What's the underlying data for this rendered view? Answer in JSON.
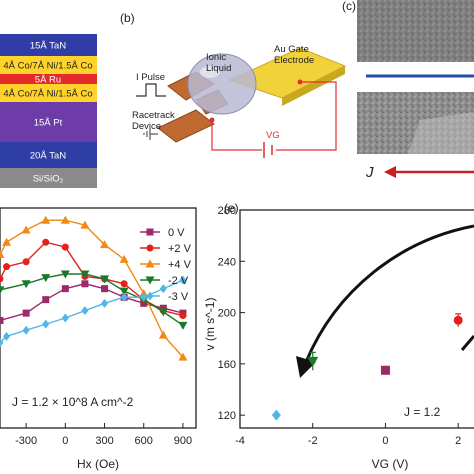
{
  "panel_labels": {
    "b": "(b)",
    "c": "(c)",
    "e": "(e)"
  },
  "stack": {
    "layers": [
      {
        "label": "15Å TaN",
        "color": "#2f3ea6",
        "text_color": "#ffffff"
      },
      {
        "label": "4Å Co/7Å Ni/1.5Å Co",
        "color": "#ffd32a",
        "text_color": "#222222"
      },
      {
        "label": "5Å Ru",
        "color": "#e52a2a",
        "text_color": "#ffffff"
      },
      {
        "label": "4Å Co/7Å Ni/1.5Å Co",
        "color": "#ffd32a",
        "text_color": "#222222"
      },
      {
        "label": "15Å Pt",
        "color": "#6d3ca8",
        "text_color": "#ffffff"
      },
      {
        "label": "20Å TaN",
        "color": "#2f3ea6",
        "text_color": "#ffffff"
      },
      {
        "label": "Si/SiO₂",
        "color": "#8a8a8a",
        "text_color": "#ffffff"
      }
    ]
  },
  "device": {
    "pulse_label": "I Pulse",
    "liquid_label": "Ionic\nLiquid",
    "device_label": "Racetrack\nDevice",
    "gate_label": "Au Gate\nElectrode",
    "voltage_label": "VG"
  },
  "kerr": {
    "current_label": "J"
  },
  "colors": {
    "accent_blue": "#1f4fa8",
    "arrow_red": "#c62020"
  },
  "chart_data": [
    {
      "type": "line",
      "title": "",
      "xlabel": "Hx (Oe)",
      "ylabel": "",
      "xlim": [
        -500,
        1000
      ],
      "ylim": [
        100,
        280
      ],
      "x_ticks": [
        -300,
        0,
        300,
        600,
        900
      ],
      "annotation": "J = 1.2 × 10^8 A cm^-2",
      "legend_position": "top-right",
      "series": [
        {
          "name": "0 V",
          "color": "#9b2a6a",
          "marker": "square",
          "x": [
            -500,
            -300,
            -150,
            0,
            150,
            300,
            450,
            600,
            750,
            900
          ],
          "y": [
            188,
            194,
            205,
            214,
            218,
            214,
            207,
            202,
            198,
            194
          ]
        },
        {
          "name": "+2 V",
          "color": "#e2211c",
          "marker": "circle",
          "x": [
            -500,
            -450,
            -300,
            -150,
            0,
            150,
            300,
            450,
            600,
            750,
            900
          ],
          "y": [
            222,
            232,
            236,
            252,
            248,
            224,
            222,
            218,
            205,
            196,
            192
          ]
        },
        {
          "name": "+4 V",
          "color": "#f08a14",
          "marker": "triangle-up",
          "x": [
            -500,
            -450,
            -300,
            -150,
            0,
            150,
            300,
            450,
            600,
            750,
            900
          ],
          "y": [
            242,
            252,
            262,
            270,
            270,
            266,
            250,
            238,
            210,
            176,
            158
          ]
        },
        {
          "name": "-2 V",
          "color": "#1b7a2a",
          "marker": "triangle-down",
          "x": [
            -500,
            -300,
            -150,
            0,
            150,
            300,
            450,
            600,
            750,
            900
          ],
          "y": [
            213,
            218,
            223,
            226,
            226,
            222,
            212,
            205,
            195,
            184
          ]
        },
        {
          "name": "-3 V",
          "color": "#52b5e8",
          "marker": "diamond",
          "x": [
            -500,
            -450,
            -300,
            -150,
            0,
            150,
            300,
            450,
            600,
            750,
            900
          ],
          "y": [
            170,
            175,
            180,
            185,
            190,
            196,
            202,
            207,
            207,
            214,
            221
          ]
        }
      ]
    },
    {
      "type": "scatter",
      "title": "",
      "xlabel": "VG (V)",
      "ylabel": "v (m s^-1)",
      "xlim": [
        -4,
        2.6
      ],
      "ylim": [
        110,
        280
      ],
      "x_ticks": [
        -4,
        -2,
        0,
        2
      ],
      "y_ticks": [
        120,
        160,
        200,
        240,
        280
      ],
      "annotation": "J = 1.2",
      "points": [
        {
          "x": -3,
          "y": 120,
          "color": "#52b5e8",
          "marker": "diamond"
        },
        {
          "x": -2,
          "y": 162,
          "err": 7,
          "color": "#1b7a2a",
          "marker": "triangle-down"
        },
        {
          "x": 0,
          "y": 155,
          "err": 3,
          "color": "#9b2a6a",
          "marker": "square"
        },
        {
          "x": 2,
          "y": 194,
          "err": 5,
          "color": "#e2211c",
          "marker": "circle"
        }
      ]
    }
  ]
}
